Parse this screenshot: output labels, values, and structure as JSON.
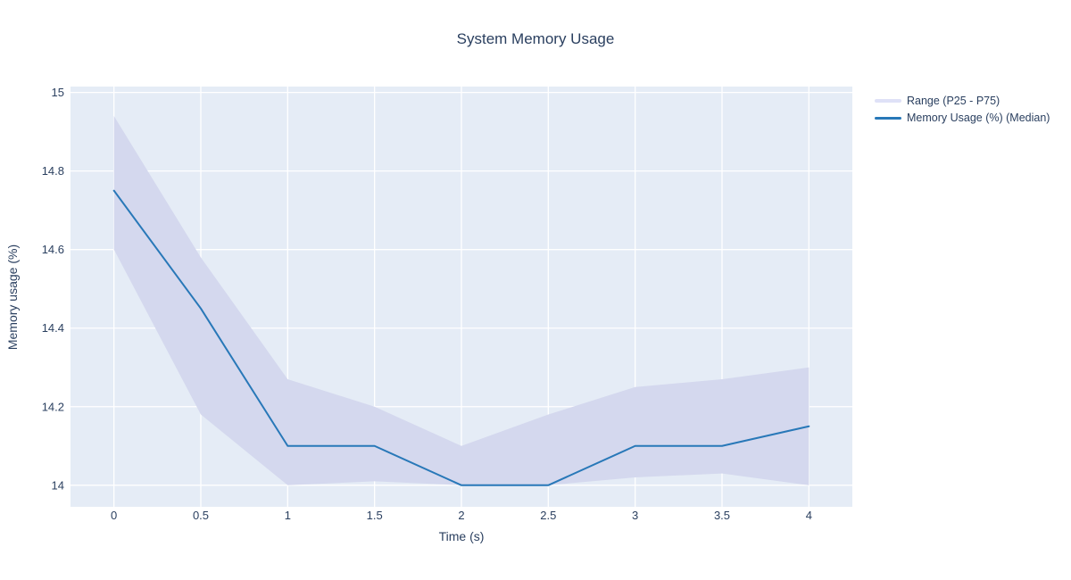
{
  "title": "System Memory Usage",
  "colors": {
    "text": "#2a3f5f",
    "plot_bg": "#e5ecf6",
    "gridline": "#ffffff",
    "band_fill": "#d4d8ee",
    "band_legend": "#dfe1f7",
    "line": "#2878b8"
  },
  "legend": {
    "items": [
      {
        "label": "Range (P25 - P75)",
        "type": "band"
      },
      {
        "label": "Memory Usage (%) (Median)",
        "type": "line"
      }
    ]
  },
  "chart_data": {
    "type": "area",
    "title": "System Memory Usage",
    "xlabel": "Time (s)",
    "ylabel": "Memory usage (%)",
    "x": [
      0,
      0.5,
      1,
      1.5,
      2,
      2.5,
      3,
      3.5,
      4
    ],
    "series": [
      {
        "name": "Range (P25 - P75)",
        "type": "band",
        "upper": [
          14.94,
          14.58,
          14.27,
          14.2,
          14.1,
          14.18,
          14.25,
          14.27,
          14.3
        ],
        "lower": [
          14.6,
          14.18,
          14.0,
          14.01,
          14.0,
          14.0,
          14.02,
          14.03,
          14.0
        ]
      },
      {
        "name": "Memory Usage (%) (Median)",
        "type": "line",
        "values": [
          14.75,
          14.45,
          14.1,
          14.1,
          14.0,
          14.0,
          14.1,
          14.1,
          14.15
        ]
      }
    ],
    "xticks": [
      "0",
      "0.5",
      "1",
      "1.5",
      "2",
      "2.5",
      "3",
      "3.5",
      "4"
    ],
    "yticks": [
      "14",
      "14.2",
      "14.4",
      "14.6",
      "14.8",
      "15"
    ],
    "xlim": [
      -0.25,
      4.25
    ],
    "ylim": [
      13.945,
      15.015
    ],
    "grid": true,
    "legend_position": "outside-top-right"
  }
}
